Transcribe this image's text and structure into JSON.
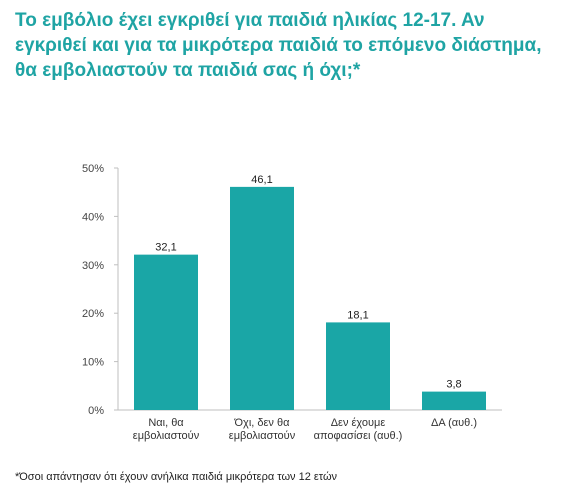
{
  "title": "Το εμβόλιο έχει εγκριθεί για παιδιά ηλικίας 12-17. Αν εγκριθεί και για τα μικρότερα παιδιά το επόμενο διάστημα, θα εμβολιαστούν τα παιδιά σας ή όχι;*",
  "footnote": "*Όσοι απάντησαν ότι έχουν ανήλικα παιδιά μικρότερα των 12 ετών",
  "colors": {
    "bar": "#1aa6a6",
    "title": "#1fa4a4",
    "axis": "#bfbfbf",
    "text": "#222222"
  },
  "chart_data": {
    "type": "bar",
    "categories": [
      [
        "Ναι, θα",
        "εμβολιαστούν"
      ],
      [
        "Όχι, δεν θα",
        "εμβολιαστούν"
      ],
      [
        "Δεν έχουμε",
        "αποφασίσει (αυθ.)"
      ],
      [
        "ΔΑ (αυθ.)"
      ]
    ],
    "values": [
      32.1,
      46.1,
      18.1,
      3.8
    ],
    "value_labels": [
      "32,1",
      "46,1",
      "18,1",
      "3,8"
    ],
    "yticks": [
      0,
      10,
      20,
      30,
      40,
      50
    ],
    "ytick_labels": [
      "0%",
      "10%",
      "20%",
      "30%",
      "40%",
      "50%"
    ],
    "ylim": [
      0,
      50
    ],
    "grid": false,
    "legend": "none"
  }
}
